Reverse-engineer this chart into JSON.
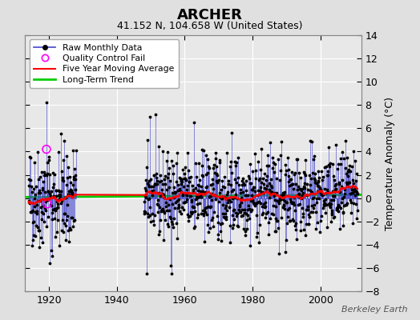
{
  "title": "ARCHER",
  "subtitle": "41.152 N, 104.658 W (United States)",
  "ylabel": "Temperature Anomaly (°C)",
  "watermark": "Berkeley Earth",
  "xlim": [
    1913,
    2012
  ],
  "ylim": [
    -8,
    14
  ],
  "yticks": [
    -8,
    -6,
    -4,
    -2,
    0,
    2,
    4,
    6,
    8,
    10,
    12,
    14
  ],
  "xticks": [
    1920,
    1940,
    1960,
    1980,
    2000
  ],
  "bg_color": "#e0e0e0",
  "plot_bg_color": "#e8e8e8",
  "grid_color": "#ffffff",
  "line_color": "#4444cc",
  "dot_color": "black",
  "ma_color": "red",
  "trend_color": "#00cc00",
  "qc_color": "magenta",
  "seed": 42,
  "start_year": 1914,
  "end_year": 2010,
  "gap_start": 1928,
  "gap_end": 1948,
  "qc_fail_year1": 1919.25,
  "qc_fail_value1": 4.2,
  "qc_fail_year2": 1919.5,
  "qc_fail_value2": -0.5,
  "trend_slope": 0.002,
  "trend_intercept": 0.18,
  "noise_scale_pre": 2.2,
  "noise_scale_post": 1.8
}
